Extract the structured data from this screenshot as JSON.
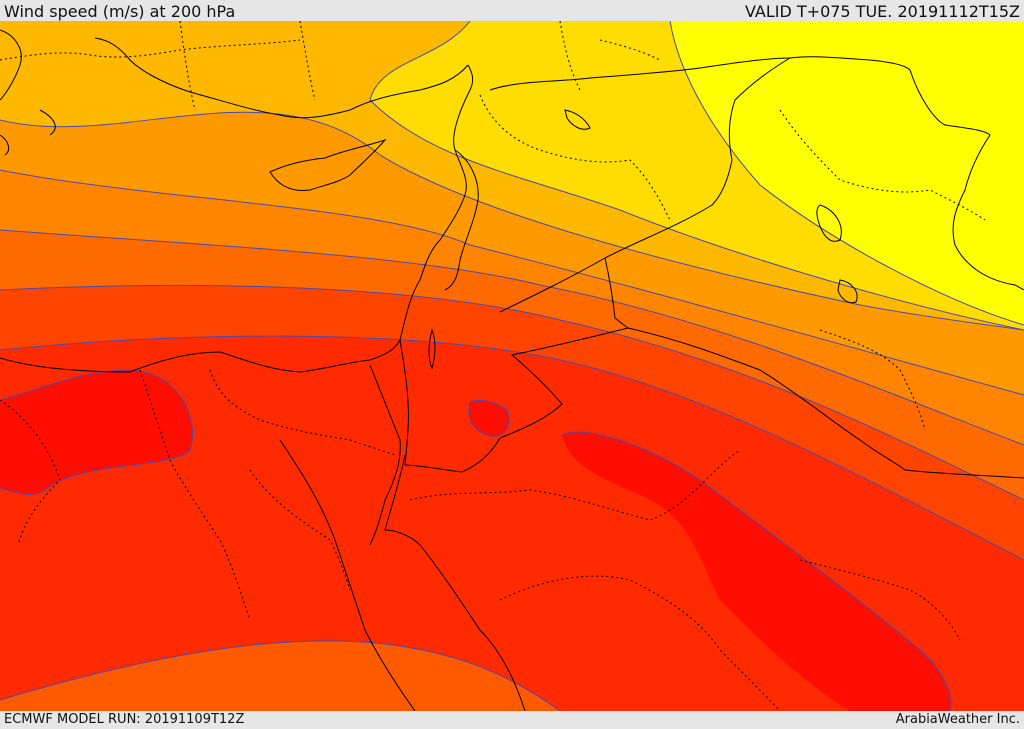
{
  "header": {
    "title": "Wind speed (m/s) at 200 hPa",
    "valid": "VALID T+075 TUE. 20191112T15Z"
  },
  "footer": {
    "model_run": "ECMWF MODEL RUN: 20191109T12Z",
    "credit": "ArabiaWeather Inc."
  },
  "map": {
    "variable": "wind speed",
    "level": "200 hPa",
    "units": "m/s",
    "shading_colors": [
      "#ffff00",
      "#ffdd00",
      "#ffb800",
      "#ff9900",
      "#ff7700",
      "#ff5500",
      "#ff3300",
      "#ff2000",
      "#ff0000"
    ],
    "contour_color": "#4a4ab0",
    "border_color": "#000000"
  }
}
